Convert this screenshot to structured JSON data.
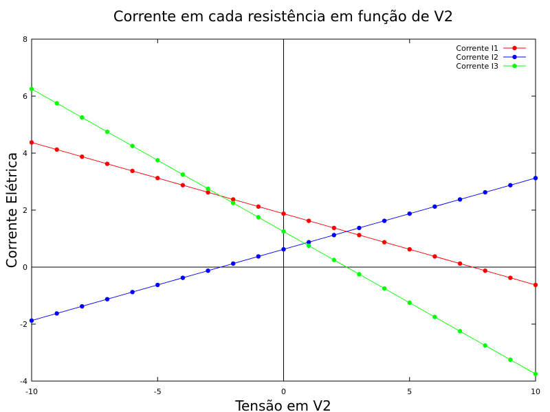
{
  "chart_data": {
    "type": "line",
    "title": "Corrente em cada resistência em função de V2",
    "xlabel": "Tensão em V2",
    "ylabel": "Corrente Elétrica",
    "xlim": [
      -10,
      10
    ],
    "ylim": [
      -4,
      8
    ],
    "x_ticks": [
      "-10",
      "-5",
      "0",
      "5",
      "10"
    ],
    "y_ticks": [
      "-4",
      "-2",
      "0",
      "2",
      "4",
      "6",
      "8"
    ],
    "legend_position": "top-right",
    "grid": false,
    "x": [
      -10,
      -9,
      -8,
      -7,
      -6,
      -5,
      -4,
      -3,
      -2,
      -1,
      0,
      1,
      2,
      3,
      4,
      5,
      6,
      7,
      8,
      9,
      10
    ],
    "series": [
      {
        "name": "Corrente I1",
        "color": "#ff0000",
        "values": [
          4.375,
          4.125,
          3.875,
          3.625,
          3.375,
          3.125,
          2.875,
          2.625,
          2.375,
          2.125,
          1.875,
          1.625,
          1.375,
          1.125,
          0.875,
          0.625,
          0.375,
          0.125,
          -0.125,
          -0.375,
          -0.625
        ]
      },
      {
        "name": "Corrente I2",
        "color": "#0000ff",
        "values": [
          -1.875,
          -1.625,
          -1.375,
          -1.125,
          -0.875,
          -0.625,
          -0.375,
          -0.125,
          0.125,
          0.375,
          0.625,
          0.875,
          1.125,
          1.375,
          1.625,
          1.875,
          2.125,
          2.375,
          2.625,
          2.875,
          3.125
        ]
      },
      {
        "name": "Corrente I3",
        "color": "#00ff00",
        "values": [
          6.25,
          5.75,
          5.25,
          4.75,
          4.25,
          3.75,
          3.25,
          2.75,
          2.25,
          1.75,
          1.25,
          0.75,
          0.25,
          -0.25,
          -0.75,
          -1.25,
          -1.75,
          -2.25,
          -2.75,
          -3.25,
          -3.75
        ]
      }
    ]
  }
}
